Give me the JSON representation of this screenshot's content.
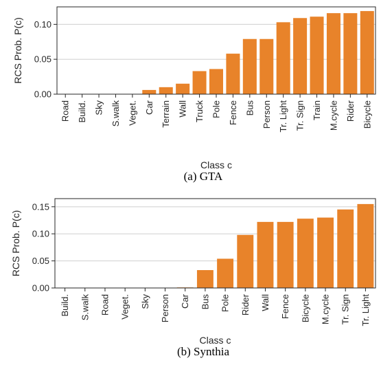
{
  "bar_color": "#e8832a",
  "grid_color": "#cfcfcf",
  "chart_data": [
    {
      "type": "bar",
      "caption": "(a) GTA",
      "xlabel": "Class c",
      "ylabel": "RCS Prob. P(c)",
      "ylim": [
        0,
        0.125
      ],
      "yticks": [
        0.0,
        0.05,
        0.1
      ],
      "ytick_labels": [
        "0.00",
        "0.05",
        "0.10"
      ],
      "grid": true,
      "categories": [
        "Road",
        "Build.",
        "Sky",
        "S.walk",
        "Veget.",
        "Car",
        "Terrain",
        "Wall",
        "Truck",
        "Pole",
        "Fence",
        "Bus",
        "Person",
        "Tr. Light",
        "Tr. Sign",
        "Train",
        "M.cycle",
        "Rider",
        "Bicycle"
      ],
      "values": [
        0.0,
        0.0,
        0.0,
        0.0,
        0.0,
        0.006,
        0.01,
        0.015,
        0.033,
        0.036,
        0.058,
        0.079,
        0.079,
        0.103,
        0.109,
        0.111,
        0.116,
        0.116,
        0.119
      ]
    },
    {
      "type": "bar",
      "caption": "(b) Synthia",
      "xlabel": "Class c",
      "ylabel": "RCS Prob. P(c)",
      "ylim": [
        0,
        0.165
      ],
      "yticks": [
        0.0,
        0.05,
        0.1,
        0.15
      ],
      "ytick_labels": [
        "0.00",
        "0.05",
        "0.10",
        "0.15"
      ],
      "grid": true,
      "categories": [
        "Build.",
        "S.walk",
        "Road",
        "Veget.",
        "Sky",
        "Person",
        "Car",
        "Bus",
        "Pole",
        "Rider",
        "Wall",
        "Fence",
        "Bicycle",
        "M.cycle",
        "Tr. Sign",
        "Tr. Light"
      ],
      "values": [
        0.0,
        0.0,
        0.0,
        0.0,
        0.0,
        0.0,
        0.001,
        0.033,
        0.054,
        0.098,
        0.122,
        0.122,
        0.128,
        0.13,
        0.145,
        0.155
      ]
    }
  ]
}
